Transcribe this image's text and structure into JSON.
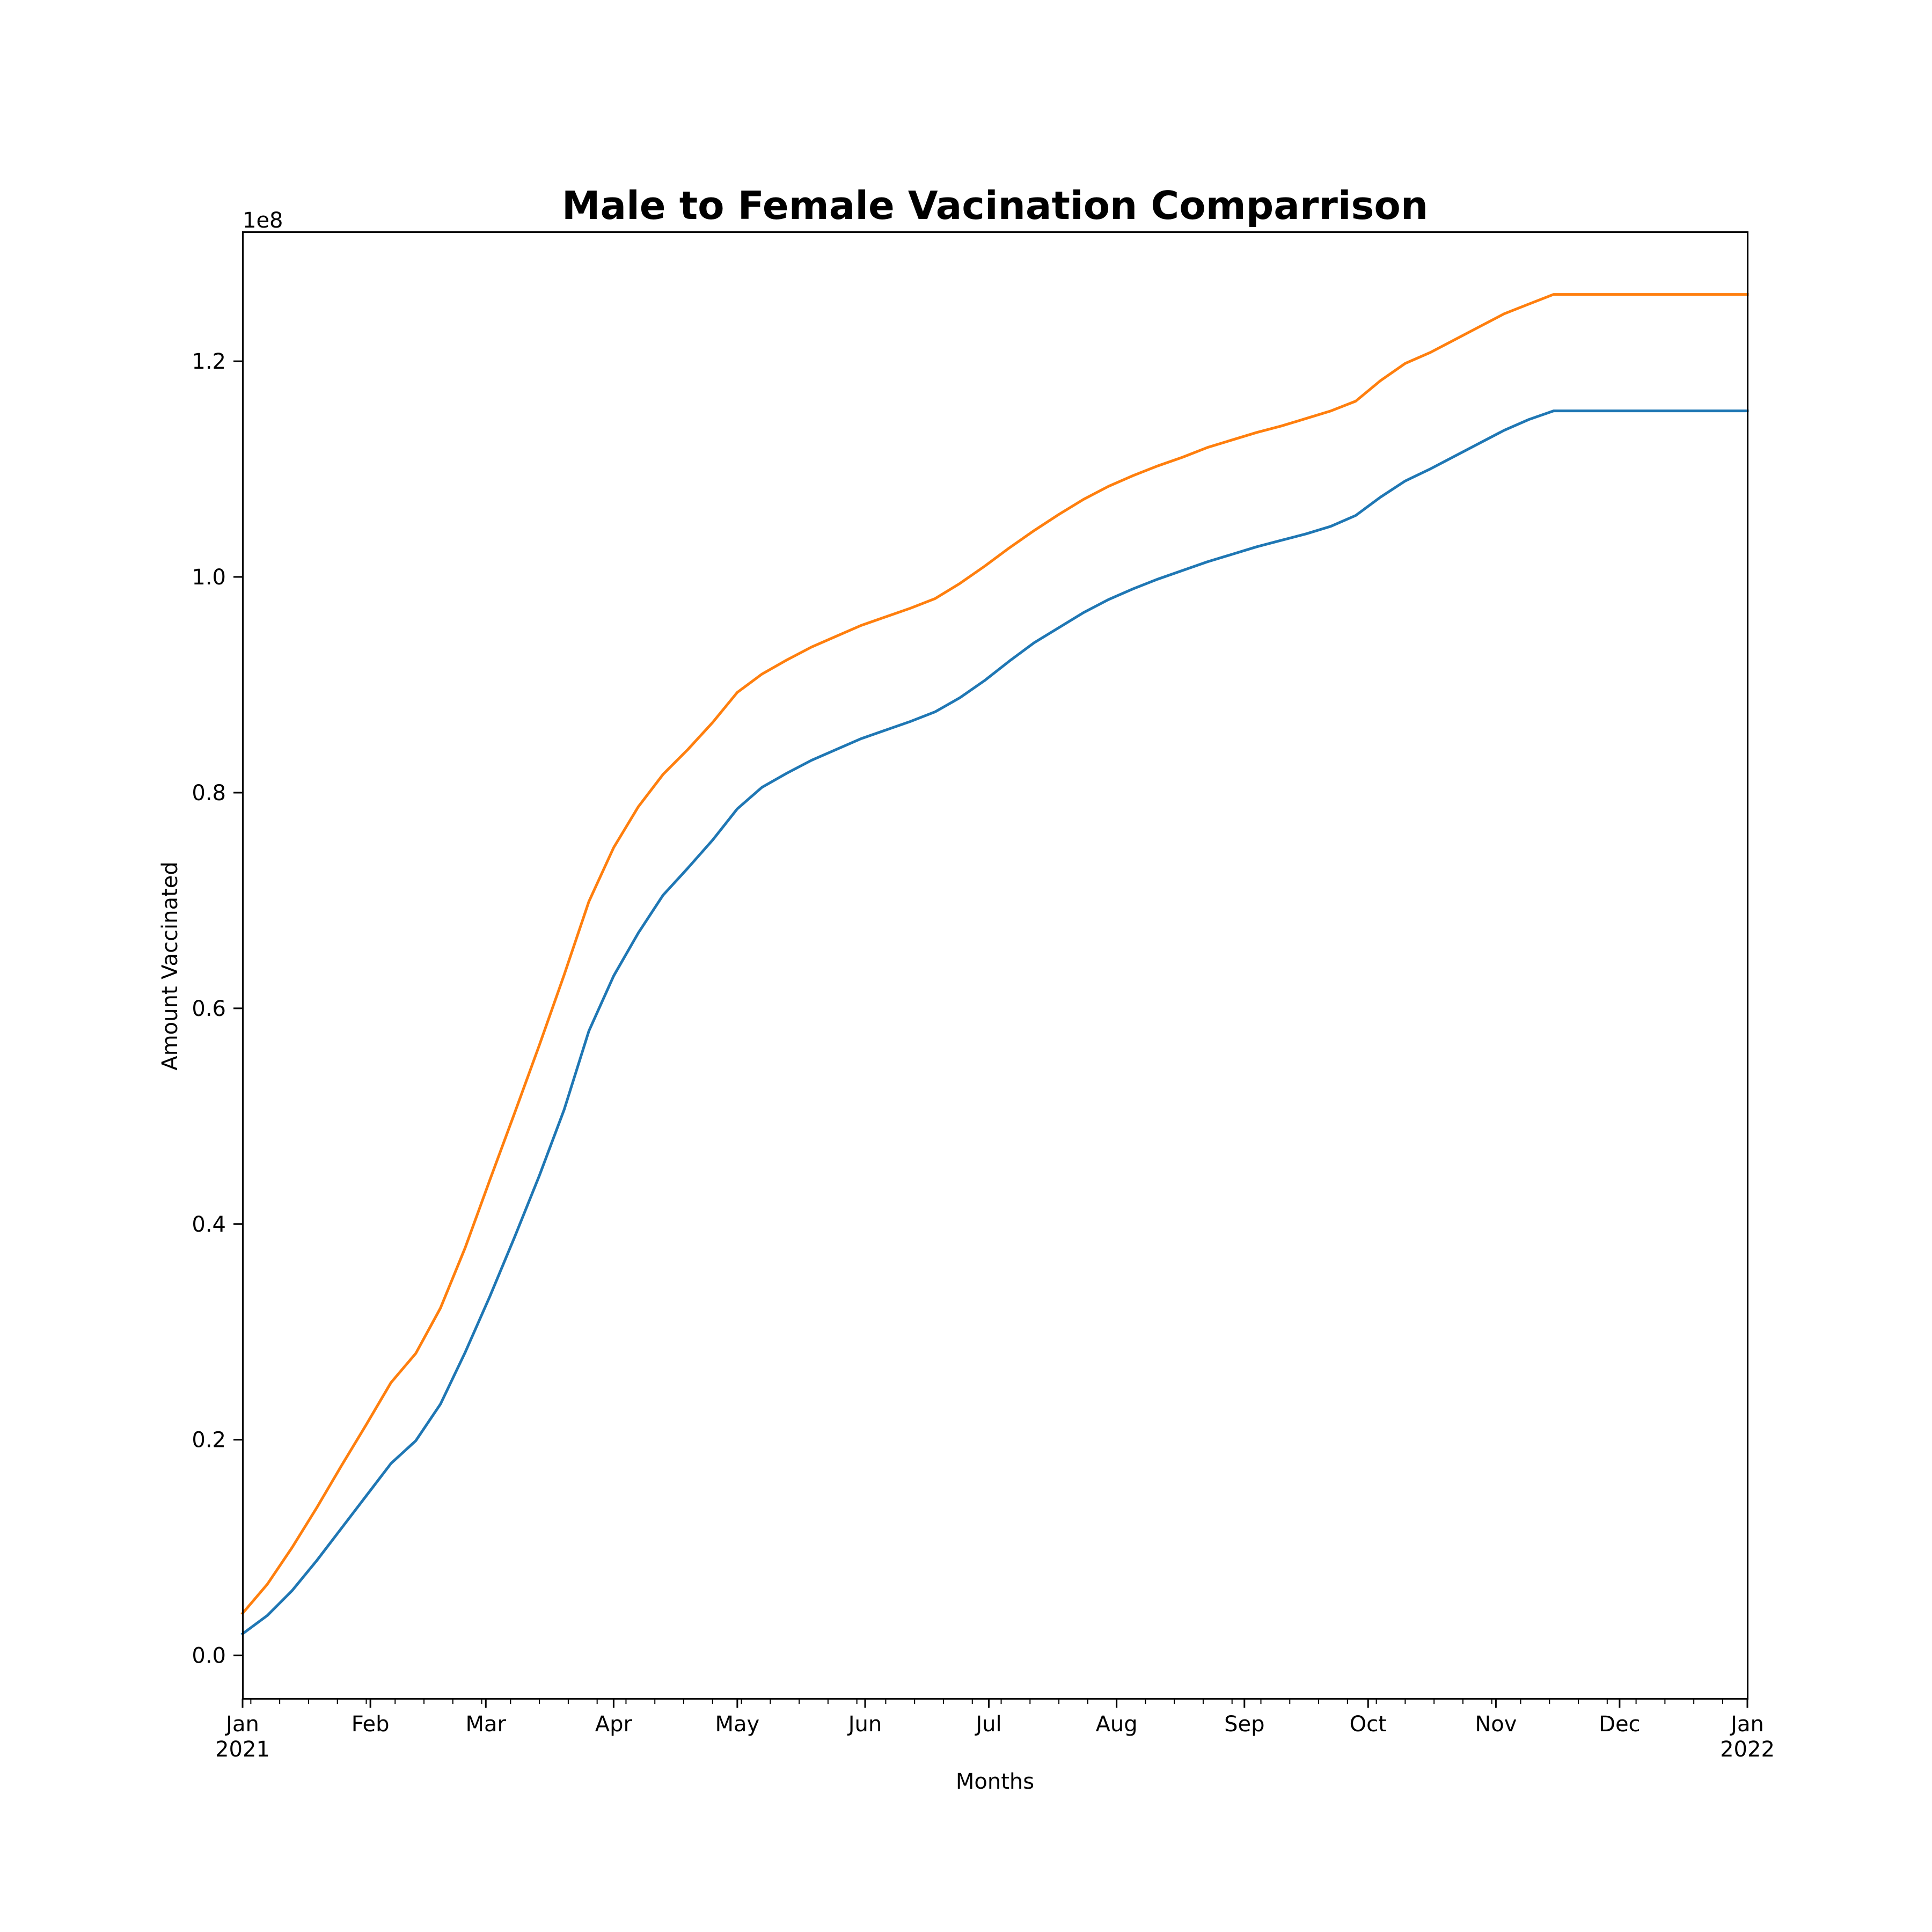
{
  "chart_data": {
    "type": "line",
    "title": "Male to Female Vacination Comparrison",
    "xlabel": "Months",
    "ylabel": "Amount Vaccinated",
    "y_offset_label": "1e8",
    "y_multiplier": 100000000,
    "xlim": [
      "2021-01-01",
      "2022-01-01"
    ],
    "ylim": [
      -4000000,
      132000000
    ],
    "grid": false,
    "legend": "none",
    "x_ticks": [
      {
        "date": "2021-01-01",
        "label": "Jan",
        "label2": "2021"
      },
      {
        "date": "2021-02-01",
        "label": "Feb",
        "label2": ""
      },
      {
        "date": "2021-03-01",
        "label": "Mar",
        "label2": ""
      },
      {
        "date": "2021-04-01",
        "label": "Apr",
        "label2": ""
      },
      {
        "date": "2021-05-01",
        "label": "May",
        "label2": ""
      },
      {
        "date": "2021-06-01",
        "label": "Jun",
        "label2": ""
      },
      {
        "date": "2021-07-01",
        "label": "Jul",
        "label2": ""
      },
      {
        "date": "2021-08-01",
        "label": "Aug",
        "label2": ""
      },
      {
        "date": "2021-09-01",
        "label": "Sep",
        "label2": ""
      },
      {
        "date": "2021-10-01",
        "label": "Oct",
        "label2": ""
      },
      {
        "date": "2021-11-01",
        "label": "Nov",
        "label2": ""
      },
      {
        "date": "2021-12-01",
        "label": "Dec",
        "label2": ""
      },
      {
        "date": "2022-01-01",
        "label": "Jan",
        "label2": "2022"
      }
    ],
    "y_ticks": [
      {
        "value": 0,
        "label": "0.0"
      },
      {
        "value": 20000000,
        "label": "0.2"
      },
      {
        "value": 40000000,
        "label": "0.4"
      },
      {
        "value": 60000000,
        "label": "0.6"
      },
      {
        "value": 80000000,
        "label": "0.8"
      },
      {
        "value": 100000000,
        "label": "1.0"
      },
      {
        "value": 120000000,
        "label": "1.2"
      }
    ],
    "x": [
      "2021-01-01",
      "2021-01-07",
      "2021-01-13",
      "2021-01-19",
      "2021-01-25",
      "2021-01-31",
      "2021-02-06",
      "2021-02-12",
      "2021-02-18",
      "2021-02-24",
      "2021-03-02",
      "2021-03-08",
      "2021-03-14",
      "2021-03-20",
      "2021-03-26",
      "2021-04-01",
      "2021-04-07",
      "2021-04-13",
      "2021-04-19",
      "2021-04-25",
      "2021-05-01",
      "2021-05-07",
      "2021-05-13",
      "2021-05-19",
      "2021-05-25",
      "2021-05-31",
      "2021-06-06",
      "2021-06-12",
      "2021-06-18",
      "2021-06-24",
      "2021-06-30",
      "2021-07-06",
      "2021-07-12",
      "2021-07-18",
      "2021-07-24",
      "2021-07-30",
      "2021-08-05",
      "2021-08-11",
      "2021-08-17",
      "2021-08-23",
      "2021-08-29",
      "2021-09-04",
      "2021-09-10",
      "2021-09-16",
      "2021-09-22",
      "2021-09-28",
      "2021-10-04",
      "2021-10-10",
      "2021-10-16",
      "2021-10-22",
      "2021-10-28",
      "2021-11-03",
      "2021-11-09",
      "2021-11-15",
      "2021-11-21",
      "2021-11-27",
      "2021-12-03",
      "2021-12-09",
      "2021-12-15",
      "2021-12-21",
      "2021-12-27",
      "2022-01-01"
    ],
    "series": [
      {
        "color": "#1f77b4",
        "values": [
          2000000,
          3700000,
          6000000,
          8800000,
          11800000,
          14800000,
          17800000,
          19900000,
          23300000,
          28100000,
          33300000,
          38800000,
          44500000,
          50600000,
          57900000,
          63000000,
          67000000,
          70500000,
          73000000,
          75600000,
          78500000,
          80500000,
          81800000,
          83000000,
          84000000,
          85000000,
          85800000,
          86600000,
          87500000,
          88800000,
          90400000,
          92200000,
          93900000,
          95300000,
          96700000,
          97900000,
          98900000,
          99800000,
          100600000,
          101400000,
          102100000,
          102800000,
          103400000,
          104000000,
          104700000,
          105700000,
          107400000,
          108900000,
          110000000,
          111200000,
          112400000,
          113600000,
          114600000,
          115400000,
          115400000,
          115400000,
          115400000,
          115400000,
          115400000,
          115400000,
          115400000,
          115400000
        ],
        "values_note": ""
      },
      {
        "color": "#ff7f0e",
        "values": [
          3900000,
          6600000,
          10000000,
          13700000,
          17600000,
          21400000,
          25300000,
          28000000,
          32200000,
          37800000,
          44100000,
          50300000,
          56600000,
          63100000,
          69900000,
          74900000,
          78700000,
          81700000,
          84000000,
          86500000,
          89300000,
          91000000,
          92300000,
          93500000,
          94500000,
          95500000,
          96300000,
          97100000,
          98000000,
          99400000,
          101000000,
          102700000,
          104300000,
          105800000,
          107200000,
          108400000,
          109400000,
          110300000,
          111100000,
          112000000,
          112700000,
          113400000,
          114000000,
          114700000,
          115400000,
          116300000,
          118200000,
          119800000,
          120800000,
          122000000,
          123200000,
          124400000,
          125300000,
          126200000,
          126200000,
          126200000,
          126200000,
          126200000,
          126200000,
          126200000,
          126200000,
          126200000
        ]
      }
    ]
  }
}
